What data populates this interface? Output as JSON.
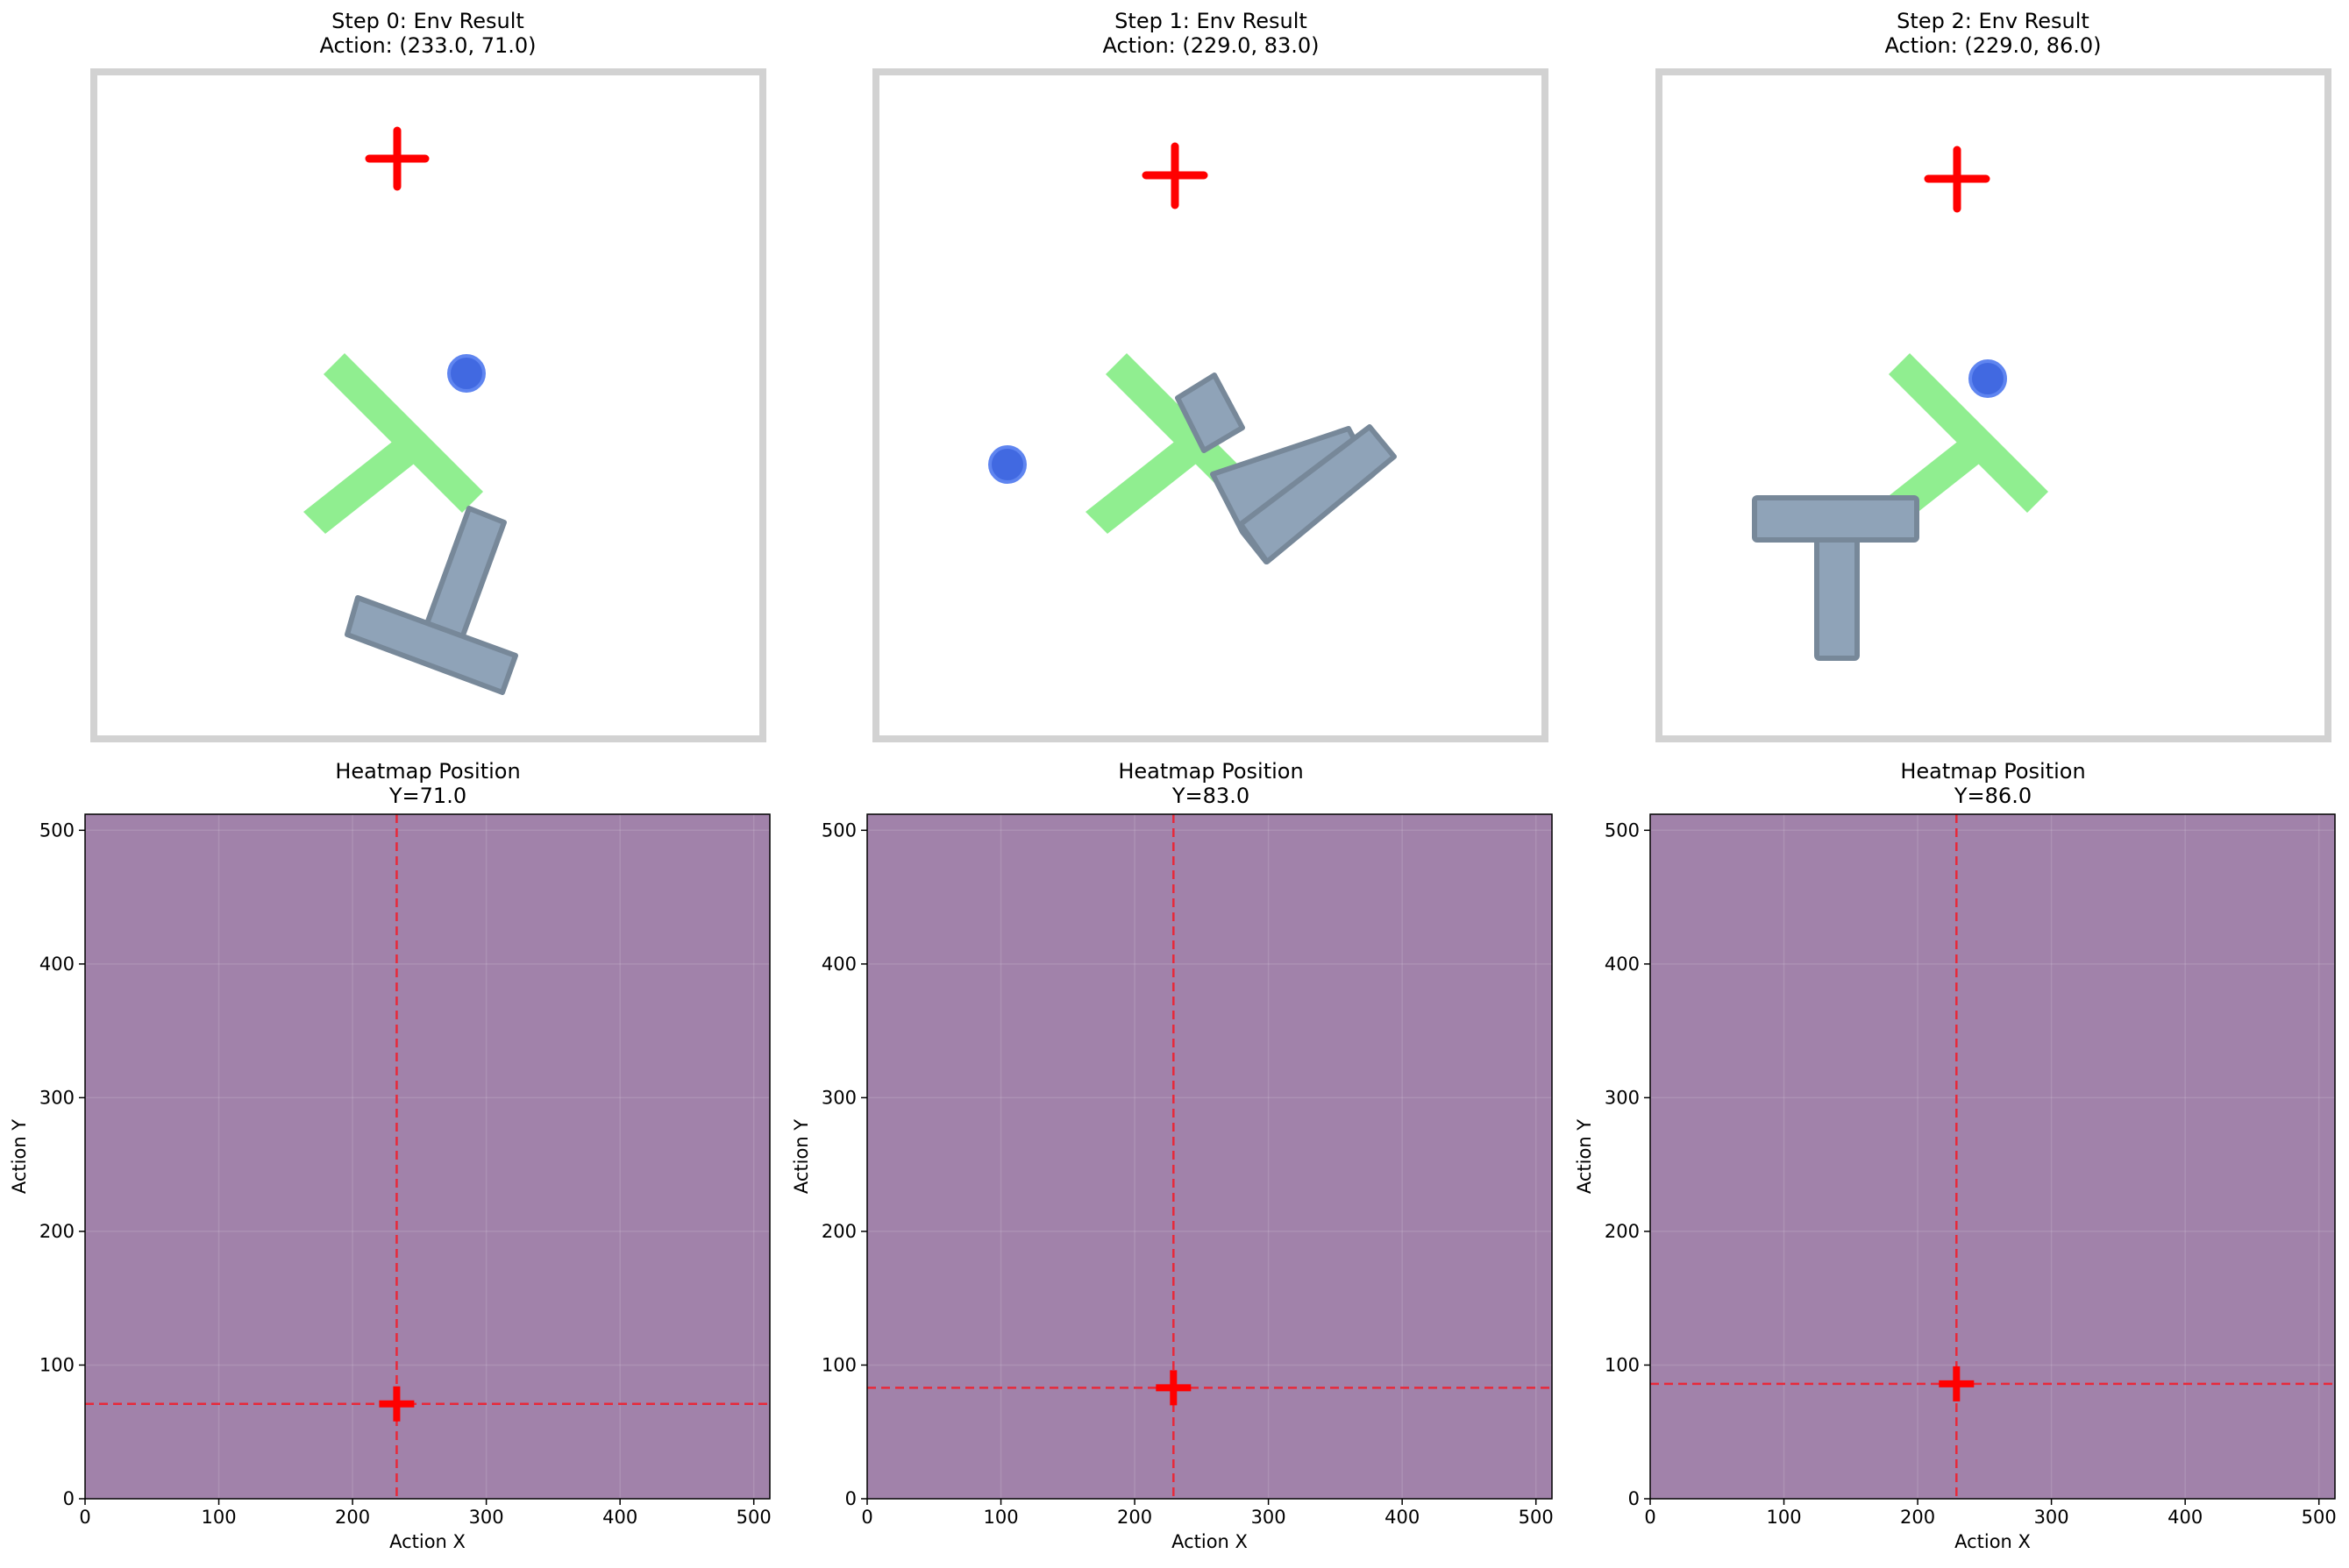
{
  "panels": [
    {
      "env_title": "Step 0: Env Result",
      "action_label": "Action: (233.0, 71.0)",
      "heatmap_title": "Heatmap Position",
      "heatmap_y_label": "Y=71.0"
    },
    {
      "env_title": "Step 1: Env Result",
      "action_label": "Action: (229.0, 83.0)",
      "heatmap_title": "Heatmap Position",
      "heatmap_y_label": "Y=83.0"
    },
    {
      "env_title": "Step 2: Env Result",
      "action_label": "Action: (229.0, 86.0)",
      "heatmap_title": "Heatmap Position",
      "heatmap_y_label": "Y=86.0"
    }
  ],
  "chart_data": [
    {
      "type": "heatmap",
      "title": "Heatmap Position",
      "subtitle": "Y=71.0",
      "xlabel": "Action X",
      "ylabel": "Action Y",
      "xlim": [
        0,
        512
      ],
      "ylim": [
        0,
        512
      ],
      "xticks": [
        0,
        100,
        200,
        300,
        400,
        500
      ],
      "yticks": [
        0,
        100,
        200,
        300,
        400,
        500
      ],
      "marker": {
        "x": 233,
        "y": 71
      },
      "grid": true,
      "fill_color": "#a182aa"
    },
    {
      "type": "heatmap",
      "title": "Heatmap Position",
      "subtitle": "Y=83.0",
      "xlabel": "Action X",
      "ylabel": "Action Y",
      "xlim": [
        0,
        512
      ],
      "ylim": [
        0,
        512
      ],
      "xticks": [
        0,
        100,
        200,
        300,
        400,
        500
      ],
      "yticks": [
        0,
        100,
        200,
        300,
        400,
        500
      ],
      "marker": {
        "x": 229,
        "y": 83
      },
      "grid": true,
      "fill_color": "#a182aa"
    },
    {
      "type": "heatmap",
      "title": "Heatmap Position",
      "subtitle": "Y=86.0",
      "xlabel": "Action X",
      "ylabel": "Action Y",
      "xlim": [
        0,
        512
      ],
      "ylim": [
        0,
        512
      ],
      "xticks": [
        0,
        100,
        200,
        300,
        400,
        500
      ],
      "yticks": [
        0,
        100,
        200,
        300,
        400,
        500
      ],
      "marker": {
        "x": 229,
        "y": 86
      },
      "grid": true,
      "fill_color": "#a182aa"
    }
  ],
  "colors": {
    "goal_t": "#90ee90",
    "block_t": "#8fa3b8",
    "block_t_edge": "#778899",
    "agent": "#4169e1",
    "target_cross": "#ff0000",
    "frame": "#d2d2d2"
  }
}
